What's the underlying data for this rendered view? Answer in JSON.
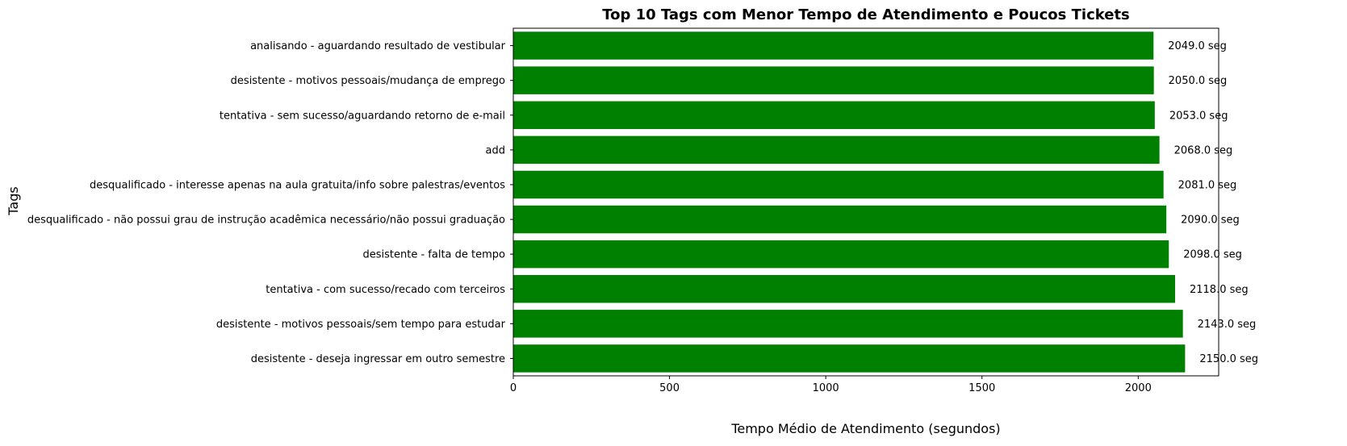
{
  "chart_data": {
    "type": "bar",
    "orientation": "horizontal",
    "title": "Top 10 Tags com Menor Tempo de Atendimento e Poucos Tickets",
    "xlabel": "Tempo Médio de Atendimento (segundos)",
    "ylabel": "Tags",
    "xlim": [
      0,
      2257.5
    ],
    "xticks": [
      0,
      500,
      1000,
      1500,
      2000
    ],
    "grid": false,
    "bar_color": "#008000",
    "value_suffix": " seg",
    "categories": [
      "analisando - aguardando resultado de vestibular",
      "desistente - motivos pessoais/mudança de emprego",
      "tentativa - sem sucesso/aguardando retorno de e-mail",
      "add",
      "desqualificado - interesse apenas na aula gratuita/info sobre palestras/eventos",
      "desqualificado - não possui grau de instrução acadêmica necessário/não possui graduação",
      "desistente - falta de tempo",
      "tentativa - com sucesso/recado com terceiros",
      "desistente - motivos pessoais/sem tempo para estudar",
      "desistente - deseja ingressar em outro semestre"
    ],
    "values": [
      2049.0,
      2050.0,
      2053.0,
      2068.0,
      2081.0,
      2090.0,
      2098.0,
      2118.0,
      2143.0,
      2150.0
    ],
    "data_labels": [
      "2049.0 seg",
      "2050.0 seg",
      "2053.0 seg",
      "2068.0 seg",
      "2081.0 seg",
      "2090.0 seg",
      "2098.0 seg",
      "2118.0 seg",
      "2143.0 seg",
      "2150.0 seg"
    ]
  }
}
